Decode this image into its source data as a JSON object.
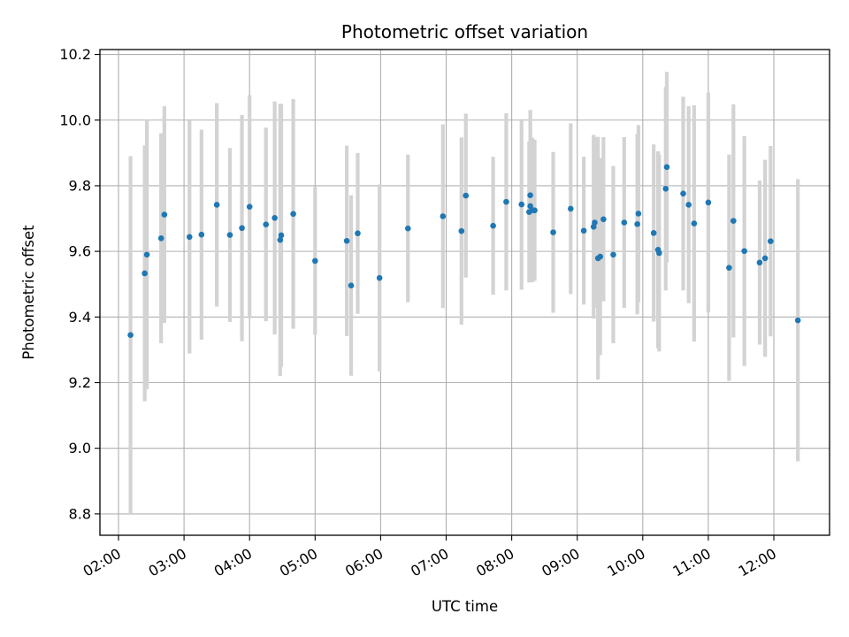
{
  "chart_data": {
    "type": "scatter",
    "title": "Photometric offset variation",
    "xlabel": "UTC time",
    "ylabel": "Photometric offset",
    "x_ticks": [
      "02:00",
      "03:00",
      "04:00",
      "05:00",
      "06:00",
      "07:00",
      "08:00",
      "09:00",
      "10:00",
      "11:00",
      "12:00"
    ],
    "x_tick_hours": [
      2,
      3,
      4,
      5,
      6,
      7,
      8,
      9,
      10,
      11,
      12
    ],
    "y_ticks": [
      "8.8",
      "9.0",
      "9.2",
      "9.4",
      "9.6",
      "9.8",
      "10.0",
      "10.2"
    ],
    "y_tick_values": [
      8.8,
      9.0,
      9.2,
      9.4,
      9.6,
      9.8,
      10.0,
      10.2
    ],
    "xlim": [
      "01:43",
      "12:51"
    ],
    "ylim": [
      8.735,
      10.215
    ],
    "grid": true,
    "point_color": "#1f77b4",
    "errorbar_color": "#d3d3d3",
    "series": [
      {
        "x": [
          "02:11",
          "02:24",
          "02:26",
          "02:39",
          "02:42",
          "03:05",
          "03:16",
          "03:30",
          "03:42",
          "03:53",
          "04:00",
          "04:15",
          "04:23",
          "04:28",
          "04:29",
          "04:40",
          "05:00",
          "05:29",
          "05:33",
          "05:39",
          "05:59",
          "06:25",
          "06:57",
          "07:14",
          "07:18",
          "07:43",
          "07:55",
          "08:09",
          "08:16",
          "08:17",
          "08:17",
          "08:19",
          "08:21",
          "08:38",
          "08:54",
          "09:06",
          "09:15",
          "09:16",
          "09:19",
          "09:21",
          "09:24",
          "09:33",
          "09:43",
          "09:55",
          "09:56",
          "10:10",
          "10:14",
          "10:15",
          "10:21",
          "10:22",
          "10:37",
          "10:42",
          "10:47",
          "11:00",
          "11:19",
          "11:23",
          "11:33",
          "11:47",
          "11:52",
          "11:57",
          "12:22"
        ],
        "y": [
          9.345,
          9.533,
          9.59,
          9.64,
          9.712,
          9.644,
          9.651,
          9.742,
          9.65,
          9.671,
          9.736,
          9.682,
          9.702,
          9.635,
          9.649,
          9.714,
          9.571,
          9.632,
          9.496,
          9.655,
          9.519,
          9.67,
          9.707,
          9.662,
          9.77,
          9.678,
          9.751,
          9.743,
          9.72,
          9.738,
          9.771,
          9.726,
          9.725,
          9.658,
          9.73,
          9.663,
          9.675,
          9.688,
          9.579,
          9.584,
          9.698,
          9.59,
          9.688,
          9.683,
          9.715,
          9.656,
          9.605,
          9.595,
          9.791,
          9.857,
          9.776,
          9.742,
          9.685,
          9.749,
          9.55,
          9.693,
          9.601,
          9.566,
          9.579,
          9.631,
          9.39
        ],
        "err": [
          0.545,
          0.39,
          0.41,
          0.32,
          0.33,
          0.355,
          0.32,
          0.31,
          0.265,
          0.345,
          0.34,
          0.295,
          0.355,
          0.415,
          0.4,
          0.35,
          0.225,
          0.29,
          0.275,
          0.245,
          0.285,
          0.225,
          0.28,
          0.285,
          0.25,
          0.21,
          0.27,
          0.26,
          0.215,
          0.23,
          0.26,
          0.22,
          0.215,
          0.245,
          0.26,
          0.225,
          0.28,
          0.26,
          0.37,
          0.3,
          0.25,
          0.27,
          0.26,
          0.275,
          0.27,
          0.27,
          0.3,
          0.3,
          0.31,
          0.29,
          0.295,
          0.3,
          0.36,
          0.335,
          0.345,
          0.355,
          0.35,
          0.25,
          0.3,
          0.29,
          0.43
        ]
      }
    ]
  }
}
